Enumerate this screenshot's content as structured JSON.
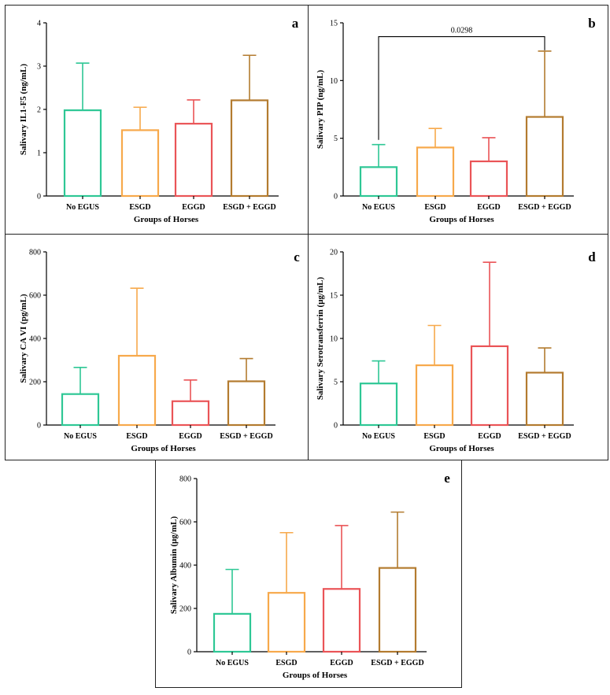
{
  "colors": {
    "No EGUS": "#2ec795",
    "ESGD": "#f7a94b",
    "EGGD": "#ea5457",
    "ESGD + EGGD": "#b37b2f"
  },
  "chart_data": [
    {
      "id": "a",
      "type": "bar",
      "panel_letter": "a",
      "categories": [
        "No EGUS",
        "ESGD",
        "EGGD",
        "ESGD + EGGD"
      ],
      "values": [
        1.98,
        1.52,
        1.67,
        2.21
      ],
      "error_upper": [
        3.07,
        2.05,
        2.22,
        3.25
      ],
      "ylim": [
        0,
        4
      ],
      "yticks": [
        0,
        1,
        2,
        3,
        4
      ],
      "ylabel": "Salivary IL1-F5 (ng/mL)",
      "xlabel": "Groups of Horses"
    },
    {
      "id": "b",
      "type": "bar",
      "panel_letter": "b",
      "categories": [
        "No EGUS",
        "ESGD",
        "EGGD",
        "ESGD + EGGD"
      ],
      "values": [
        2.5,
        4.2,
        3.0,
        6.85
      ],
      "error_upper": [
        4.45,
        5.85,
        5.05,
        12.55
      ],
      "ylim": [
        0,
        15
      ],
      "yticks": [
        0,
        5,
        10,
        15
      ],
      "ylabel": "Salivary PIP (ng/mL)",
      "xlabel": "Groups of Horses",
      "annotation": {
        "text": "0.0298",
        "from": "No EGUS",
        "to": "ESGD + EGGD",
        "y": 13.8
      }
    },
    {
      "id": "c",
      "type": "bar",
      "panel_letter": "c",
      "categories": [
        "No EGUS",
        "ESGD",
        "EGGD",
        "ESGD + EGGD"
      ],
      "values": [
        143,
        320,
        110,
        202
      ],
      "error_upper": [
        266,
        632,
        208,
        307
      ],
      "ylim": [
        0,
        800
      ],
      "yticks": [
        0,
        200,
        400,
        600,
        800
      ],
      "ylabel": "Salivary CA VI (pg/mL)",
      "xlabel": "Groups of Horses"
    },
    {
      "id": "d",
      "type": "bar",
      "panel_letter": "d",
      "categories": [
        "No EGUS",
        "ESGD",
        "EGGD",
        "ESGD + EGGD"
      ],
      "values": [
        4.8,
        6.9,
        9.1,
        6.05
      ],
      "error_upper": [
        7.4,
        11.5,
        18.8,
        8.9
      ],
      "ylim": [
        0,
        20
      ],
      "yticks": [
        0,
        5,
        10,
        15,
        20
      ],
      "ylabel": "Salivary Serotransferrin (μg/mL)",
      "xlabel": "Groups of Horses"
    },
    {
      "id": "e",
      "type": "bar",
      "panel_letter": "e",
      "categories": [
        "No EGUS",
        "ESGD",
        "EGGD",
        "ESGD + EGGD"
      ],
      "values": [
        175,
        272,
        290,
        387
      ],
      "error_upper": [
        380,
        550,
        583,
        645
      ],
      "ylim": [
        0,
        800
      ],
      "yticks": [
        0,
        200,
        400,
        600,
        800
      ],
      "ylabel": "Salivary Albumin (μg/mL)",
      "xlabel": "Groups of Horses"
    }
  ]
}
